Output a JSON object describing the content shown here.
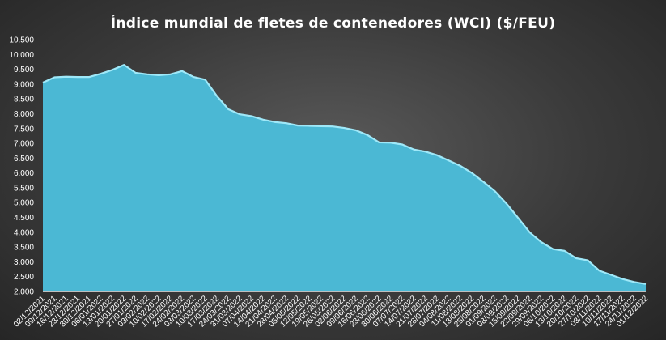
{
  "chart_data": {
    "type": "area",
    "title": "Índice mundial  de fletes de contenedores (WCI) ($/FEU)",
    "xlabel": "",
    "ylabel": "",
    "ylim": [
      2000,
      10500
    ],
    "y_ticks": [
      "2.000",
      "2.500",
      "3.000",
      "3.500",
      "4.000",
      "4.500",
      "5.000",
      "5.500",
      "6.000",
      "6.500",
      "7.000",
      "7.500",
      "8.000",
      "8.500",
      "9.000",
      "9.500",
      "10.000",
      "10.500"
    ],
    "grid": false,
    "colors": {
      "fill": "#4bb8d4",
      "line": "#9fe8f8"
    },
    "x": [
      "02/12/2021",
      "09/12/2021",
      "16/12/2021",
      "23/12/2021",
      "30/12/2021",
      "06/01/2022",
      "13/01/2022",
      "20/01/2022",
      "27/01/2022",
      "03/02/2022",
      "10/02/2022",
      "17/02/2022",
      "24/02/2022",
      "03/03/2022",
      "10/03/2022",
      "17/03/2022",
      "24/03/2022",
      "31/03/2022",
      "07/04/2022",
      "14/04/2022",
      "21/04/2022",
      "28/04/2022",
      "05/05/2022",
      "12/05/2022",
      "19/05/2022",
      "26/05/2022",
      "02/06/2022",
      "09/06/2022",
      "16/06/2022",
      "23/06/2022",
      "30/06/2022",
      "07/07/2022",
      "14/07/2022",
      "21/07/2022",
      "28/07/2022",
      "04/08/2022",
      "11/08/2022",
      "18/08/2022",
      "25/08/2022",
      "01/09/2022",
      "08/09/2022",
      "15/09/2022",
      "22/09/2022",
      "29/09/2022",
      "06/10/2022",
      "13/10/2022",
      "20/10/2022",
      "27/10/2022",
      "03/11/2022",
      "10/11/2022",
      "17/11/2022",
      "24/11/2022",
      "01/12/2022"
    ],
    "values": [
      9050,
      9230,
      9250,
      9240,
      9240,
      9350,
      9480,
      9650,
      9380,
      9330,
      9300,
      9330,
      9440,
      9240,
      9150,
      8600,
      8150,
      7980,
      7920,
      7800,
      7720,
      7680,
      7600,
      7590,
      7580,
      7570,
      7520,
      7440,
      7280,
      7030,
      7020,
      6960,
      6790,
      6720,
      6600,
      6420,
      6240,
      6000,
      5700,
      5380,
      4960,
      4480,
      3990,
      3660,
      3430,
      3370,
      3120,
      3050,
      2700,
      2560,
      2420,
      2320,
      2250
    ]
  }
}
